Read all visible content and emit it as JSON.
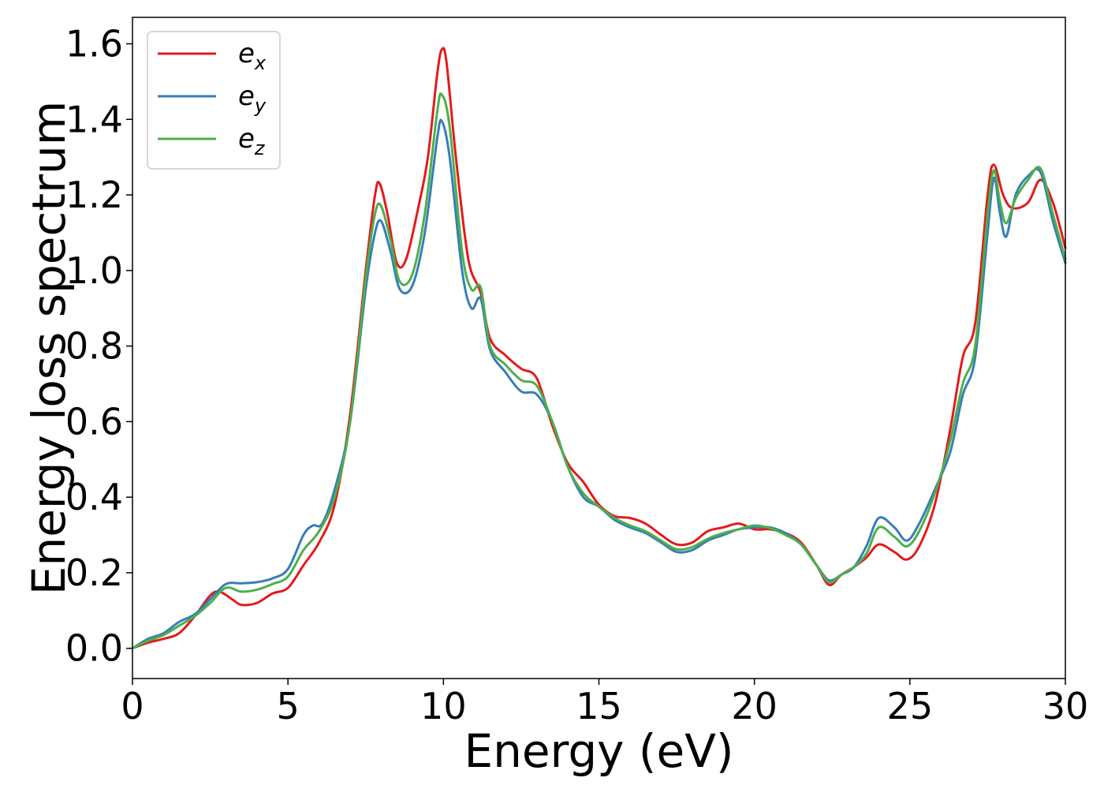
{
  "chart_data": {
    "type": "line",
    "title": "",
    "xlabel": "Energy (eV)",
    "ylabel": "Energy loss spectrum",
    "xlim": [
      0,
      30
    ],
    "ylim": [
      -0.08,
      1.67
    ],
    "xticks": [
      0,
      5,
      10,
      15,
      20,
      25,
      30
    ],
    "xtick_labels": [
      "0",
      "5",
      "10",
      "15",
      "20",
      "25",
      "30"
    ],
    "yticks": [
      0.0,
      0.2,
      0.4,
      0.6,
      0.8,
      1.0,
      1.2,
      1.4,
      1.6
    ],
    "ytick_labels": [
      "0.0",
      "0.2",
      "0.4",
      "0.6",
      "0.8",
      "1.0",
      "1.2",
      "1.4",
      "1.6"
    ],
    "grid": false,
    "legend_position": "top-left",
    "series": [
      {
        "name": "e_x",
        "label_base": "e",
        "label_sub": "x",
        "color": "#e41a1c",
        "points": [
          [
            0,
            0.0
          ],
          [
            0.5,
            0.015
          ],
          [
            1.0,
            0.025
          ],
          [
            1.5,
            0.04
          ],
          [
            2.0,
            0.085
          ],
          [
            2.5,
            0.14
          ],
          [
            2.8,
            0.15
          ],
          [
            3.2,
            0.13
          ],
          [
            3.5,
            0.115
          ],
          [
            4.0,
            0.12
          ],
          [
            4.5,
            0.145
          ],
          [
            5.0,
            0.16
          ],
          [
            5.5,
            0.22
          ],
          [
            6.0,
            0.28
          ],
          [
            6.5,
            0.38
          ],
          [
            7.0,
            0.62
          ],
          [
            7.5,
            1.0
          ],
          [
            7.8,
            1.2
          ],
          [
            7.95,
            1.23
          ],
          [
            8.2,
            1.15
          ],
          [
            8.5,
            1.02
          ],
          [
            8.8,
            1.03
          ],
          [
            9.2,
            1.17
          ],
          [
            9.5,
            1.3
          ],
          [
            9.8,
            1.52
          ],
          [
            9.95,
            1.585
          ],
          [
            10.1,
            1.55
          ],
          [
            10.4,
            1.3
          ],
          [
            10.8,
            1.03
          ],
          [
            11.2,
            0.94
          ],
          [
            11.5,
            0.82
          ],
          [
            12.0,
            0.775
          ],
          [
            12.5,
            0.74
          ],
          [
            13.0,
            0.715
          ],
          [
            13.5,
            0.59
          ],
          [
            14.0,
            0.49
          ],
          [
            14.5,
            0.44
          ],
          [
            15.0,
            0.38
          ],
          [
            15.5,
            0.35
          ],
          [
            16.0,
            0.345
          ],
          [
            16.5,
            0.33
          ],
          [
            17.0,
            0.3
          ],
          [
            17.5,
            0.275
          ],
          [
            18.0,
            0.28
          ],
          [
            18.5,
            0.31
          ],
          [
            19.0,
            0.32
          ],
          [
            19.5,
            0.33
          ],
          [
            20.0,
            0.315
          ],
          [
            20.5,
            0.315
          ],
          [
            21.0,
            0.305
          ],
          [
            21.5,
            0.28
          ],
          [
            22.0,
            0.22
          ],
          [
            22.4,
            0.168
          ],
          [
            22.8,
            0.195
          ],
          [
            23.2,
            0.215
          ],
          [
            23.6,
            0.24
          ],
          [
            24.0,
            0.275
          ],
          [
            24.5,
            0.255
          ],
          [
            24.9,
            0.235
          ],
          [
            25.3,
            0.27
          ],
          [
            25.8,
            0.38
          ],
          [
            26.3,
            0.58
          ],
          [
            26.7,
            0.77
          ],
          [
            27.1,
            0.86
          ],
          [
            27.5,
            1.2
          ],
          [
            27.7,
            1.28
          ],
          [
            28.0,
            1.2
          ],
          [
            28.3,
            1.165
          ],
          [
            28.8,
            1.18
          ],
          [
            29.2,
            1.24
          ],
          [
            29.6,
            1.18
          ],
          [
            30.0,
            1.06
          ]
        ]
      },
      {
        "name": "e_y",
        "label_base": "e",
        "label_sub": "y",
        "color": "#377eb8",
        "points": [
          [
            0,
            0.0
          ],
          [
            0.5,
            0.025
          ],
          [
            1.0,
            0.04
          ],
          [
            1.5,
            0.07
          ],
          [
            2.0,
            0.09
          ],
          [
            2.5,
            0.13
          ],
          [
            3.0,
            0.17
          ],
          [
            3.5,
            0.172
          ],
          [
            4.0,
            0.175
          ],
          [
            4.5,
            0.185
          ],
          [
            5.0,
            0.21
          ],
          [
            5.5,
            0.3
          ],
          [
            5.8,
            0.325
          ],
          [
            6.1,
            0.33
          ],
          [
            6.5,
            0.42
          ],
          [
            7.0,
            0.6
          ],
          [
            7.5,
            0.95
          ],
          [
            7.8,
            1.1
          ],
          [
            8.0,
            1.13
          ],
          [
            8.3,
            1.05
          ],
          [
            8.6,
            0.95
          ],
          [
            9.0,
            0.96
          ],
          [
            9.4,
            1.1
          ],
          [
            9.8,
            1.35
          ],
          [
            9.95,
            1.395
          ],
          [
            10.2,
            1.3
          ],
          [
            10.6,
            1.0
          ],
          [
            10.9,
            0.9
          ],
          [
            11.2,
            0.925
          ],
          [
            11.5,
            0.79
          ],
          [
            12.0,
            0.73
          ],
          [
            12.5,
            0.68
          ],
          [
            13.0,
            0.672
          ],
          [
            13.5,
            0.6
          ],
          [
            14.0,
            0.48
          ],
          [
            14.5,
            0.4
          ],
          [
            15.0,
            0.375
          ],
          [
            15.5,
            0.34
          ],
          [
            16.0,
            0.32
          ],
          [
            16.5,
            0.305
          ],
          [
            17.0,
            0.28
          ],
          [
            17.5,
            0.255
          ],
          [
            18.0,
            0.26
          ],
          [
            18.5,
            0.285
          ],
          [
            19.0,
            0.3
          ],
          [
            19.5,
            0.315
          ],
          [
            20.0,
            0.32
          ],
          [
            20.5,
            0.32
          ],
          [
            21.0,
            0.305
          ],
          [
            21.5,
            0.275
          ],
          [
            22.0,
            0.22
          ],
          [
            22.4,
            0.18
          ],
          [
            22.8,
            0.195
          ],
          [
            23.2,
            0.215
          ],
          [
            23.6,
            0.27
          ],
          [
            24.0,
            0.345
          ],
          [
            24.5,
            0.32
          ],
          [
            24.9,
            0.285
          ],
          [
            25.3,
            0.33
          ],
          [
            25.8,
            0.42
          ],
          [
            26.3,
            0.52
          ],
          [
            26.7,
            0.67
          ],
          [
            27.1,
            0.77
          ],
          [
            27.5,
            1.1
          ],
          [
            27.7,
            1.245
          ],
          [
            27.9,
            1.15
          ],
          [
            28.1,
            1.09
          ],
          [
            28.4,
            1.2
          ],
          [
            28.8,
            1.25
          ],
          [
            29.2,
            1.26
          ],
          [
            29.6,
            1.13
          ],
          [
            30.0,
            1.02
          ]
        ]
      },
      {
        "name": "e_z",
        "label_base": "e",
        "label_sub": "z",
        "color": "#4daf4a",
        "points": [
          [
            0,
            0.0
          ],
          [
            0.5,
            0.02
          ],
          [
            1.0,
            0.035
          ],
          [
            1.5,
            0.06
          ],
          [
            2.0,
            0.085
          ],
          [
            2.5,
            0.12
          ],
          [
            3.0,
            0.16
          ],
          [
            3.5,
            0.15
          ],
          [
            4.0,
            0.155
          ],
          [
            4.5,
            0.17
          ],
          [
            5.0,
            0.19
          ],
          [
            5.5,
            0.26
          ],
          [
            6.0,
            0.31
          ],
          [
            6.5,
            0.4
          ],
          [
            7.0,
            0.6
          ],
          [
            7.5,
            0.98
          ],
          [
            7.8,
            1.15
          ],
          [
            8.0,
            1.17
          ],
          [
            8.3,
            1.08
          ],
          [
            8.6,
            0.97
          ],
          [
            9.0,
            0.99
          ],
          [
            9.4,
            1.15
          ],
          [
            9.8,
            1.42
          ],
          [
            9.95,
            1.465
          ],
          [
            10.2,
            1.38
          ],
          [
            10.6,
            1.05
          ],
          [
            10.9,
            0.95
          ],
          [
            11.2,
            0.955
          ],
          [
            11.5,
            0.8
          ],
          [
            12.0,
            0.75
          ],
          [
            12.5,
            0.71
          ],
          [
            13.0,
            0.695
          ],
          [
            13.5,
            0.6
          ],
          [
            14.0,
            0.48
          ],
          [
            14.5,
            0.41
          ],
          [
            15.0,
            0.375
          ],
          [
            15.5,
            0.345
          ],
          [
            16.0,
            0.325
          ],
          [
            16.5,
            0.31
          ],
          [
            17.0,
            0.285
          ],
          [
            17.5,
            0.262
          ],
          [
            18.0,
            0.268
          ],
          [
            18.5,
            0.29
          ],
          [
            19.0,
            0.305
          ],
          [
            19.5,
            0.315
          ],
          [
            20.0,
            0.325
          ],
          [
            20.5,
            0.318
          ],
          [
            21.0,
            0.3
          ],
          [
            21.5,
            0.275
          ],
          [
            22.0,
            0.22
          ],
          [
            22.4,
            0.175
          ],
          [
            22.8,
            0.195
          ],
          [
            23.2,
            0.215
          ],
          [
            23.6,
            0.25
          ],
          [
            24.0,
            0.32
          ],
          [
            24.5,
            0.295
          ],
          [
            24.9,
            0.27
          ],
          [
            25.3,
            0.31
          ],
          [
            25.8,
            0.41
          ],
          [
            26.3,
            0.55
          ],
          [
            26.7,
            0.7
          ],
          [
            27.1,
            0.8
          ],
          [
            27.5,
            1.15
          ],
          [
            27.7,
            1.265
          ],
          [
            27.9,
            1.18
          ],
          [
            28.1,
            1.125
          ],
          [
            28.4,
            1.19
          ],
          [
            28.8,
            1.24
          ],
          [
            29.2,
            1.27
          ],
          [
            29.6,
            1.15
          ],
          [
            30.0,
            1.03
          ]
        ]
      }
    ]
  }
}
